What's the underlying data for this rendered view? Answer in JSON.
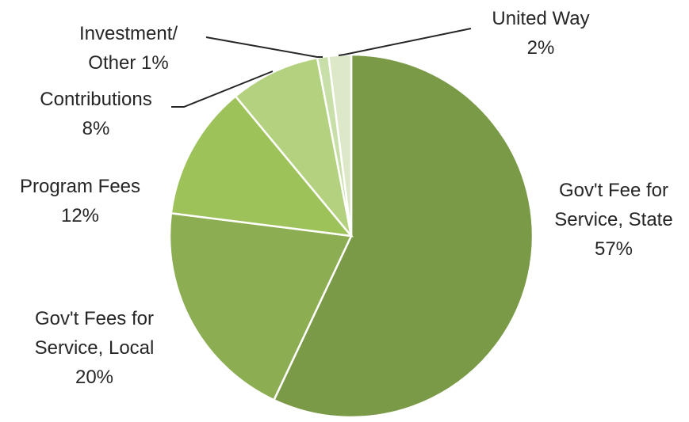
{
  "chart_data": {
    "type": "pie",
    "title": "",
    "legend": "none",
    "slices": [
      {
        "label_lines": [
          "Gov't Fee for",
          "Service, State"
        ],
        "value": 57,
        "pct_text": "57%",
        "color": "#7A9A48"
      },
      {
        "label_lines": [
          "Gov't Fees for",
          "Service, Local"
        ],
        "value": 20,
        "pct_text": "20%",
        "color": "#8CAD52"
      },
      {
        "label_lines": [
          "Program Fees"
        ],
        "value": 12,
        "pct_text": "12%",
        "color": "#9EC25A"
      },
      {
        "label_lines": [
          "Contributions"
        ],
        "value": 8,
        "pct_text": "8%",
        "color": "#B3D17E"
      },
      {
        "label_lines": [
          "Investment/",
          "Other"
        ],
        "value": 1,
        "pct_text": "1%",
        "color": "#C9DFA9"
      },
      {
        "label_lines": [
          "United Way"
        ],
        "value": 2,
        "pct_text": "2%",
        "color": "#DCE8C8"
      }
    ]
  }
}
